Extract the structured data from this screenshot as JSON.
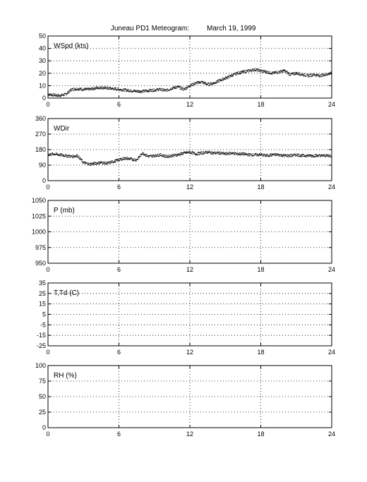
{
  "title": {
    "station": "Juneau PD1 Meteogram:",
    "date": "March 19, 1999"
  },
  "chart_data": [
    {
      "type": "scatter",
      "id": "wspd",
      "ylabel": "WSpd (kts)",
      "xlim": [
        0,
        24
      ],
      "ylim": [
        0,
        50
      ],
      "xticks": [
        0,
        6,
        12,
        18,
        24
      ],
      "yticks": [
        0,
        10,
        20,
        30,
        40,
        50
      ],
      "grid": true,
      "series": [
        {
          "x": [
            0,
            0.5,
            1,
            1.5,
            2,
            2.5,
            3,
            3.5,
            4,
            4.5,
            5,
            5.5,
            6,
            6.5,
            7,
            7.5,
            8,
            8.5,
            9,
            9.5,
            10,
            10.5,
            11,
            11.5,
            12,
            12.5,
            13,
            13.5,
            14,
            14.5,
            15,
            15.5,
            16,
            16.5,
            17,
            17.5,
            18,
            18.5,
            19,
            19.5,
            20,
            20.5,
            21,
            21.5,
            22,
            22.5,
            23,
            23.5,
            24
          ],
          "values": [
            3,
            2.5,
            2,
            3,
            7,
            7.5,
            7,
            7,
            8,
            8.5,
            8,
            7.5,
            7,
            6.5,
            6,
            5.5,
            5.5,
            6,
            6.5,
            7,
            6,
            8,
            9,
            7,
            10,
            12,
            13,
            11,
            12,
            14,
            16,
            18,
            20,
            21,
            22,
            23,
            22,
            21,
            20,
            21,
            22,
            19,
            20,
            19,
            18,
            19,
            18,
            19,
            20
          ]
        }
      ]
    },
    {
      "type": "scatter",
      "id": "wdir",
      "ylabel": "WDir",
      "xlim": [
        0,
        24
      ],
      "ylim": [
        0,
        360
      ],
      "xticks": [
        0,
        6,
        12,
        18,
        24
      ],
      "yticks": [
        0,
        90,
        180,
        270,
        360
      ],
      "grid": true,
      "series": [
        {
          "x": [
            0,
            0.5,
            1,
            1.5,
            2,
            2.5,
            3,
            3.5,
            4,
            4.5,
            5,
            5.5,
            6,
            6.5,
            7,
            7.5,
            8,
            8.5,
            9,
            9.5,
            10,
            10.5,
            11,
            11.5,
            12,
            12.5,
            13,
            13.5,
            14,
            14.5,
            15,
            15.5,
            16,
            16.5,
            17,
            17.5,
            18,
            18.5,
            19,
            19.5,
            20,
            20.5,
            21,
            21.5,
            22,
            22.5,
            23,
            23.5,
            24
          ],
          "values": [
            150,
            155,
            150,
            145,
            140,
            145,
            105,
            95,
            100,
            105,
            100,
            110,
            120,
            130,
            125,
            120,
            160,
            140,
            145,
            150,
            140,
            145,
            150,
            160,
            165,
            155,
            160,
            165,
            160,
            160,
            155,
            160,
            155,
            155,
            150,
            150,
            150,
            145,
            150,
            150,
            145,
            145,
            150,
            145,
            145,
            145,
            145,
            145,
            145
          ]
        }
      ]
    },
    {
      "type": "scatter",
      "id": "pressure",
      "ylabel": "P (mb)",
      "xlim": [
        0,
        24
      ],
      "ylim": [
        950,
        1050
      ],
      "xticks": [
        0,
        6,
        12,
        18,
        24
      ],
      "yticks": [
        950,
        975,
        1000,
        1025,
        1050
      ],
      "grid": true,
      "series": []
    },
    {
      "type": "scatter",
      "id": "temp",
      "ylabel": "T,Td (C)",
      "xlim": [
        0,
        24
      ],
      "ylim": [
        -25,
        35
      ],
      "xticks": [
        0,
        6,
        12,
        18,
        24
      ],
      "yticks": [
        -25,
        -15,
        -5,
        5,
        15,
        25,
        35
      ],
      "grid": true,
      "series": []
    },
    {
      "type": "scatter",
      "id": "rh",
      "ylabel": "RH (%)",
      "xlim": [
        0,
        24
      ],
      "ylim": [
        0,
        100
      ],
      "xticks": [
        0,
        6,
        12,
        18,
        24
      ],
      "yticks": [
        0,
        25,
        50,
        75,
        100
      ],
      "grid": true,
      "series": []
    }
  ]
}
